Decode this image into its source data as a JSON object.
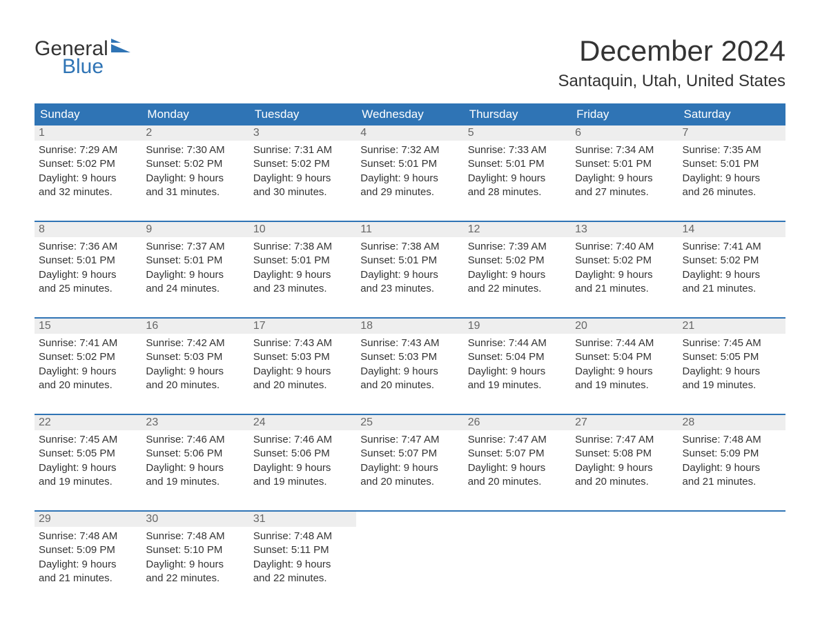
{
  "logo": {
    "text1": "General",
    "text2": "Blue",
    "shape_color": "#2f74b5"
  },
  "title": "December 2024",
  "location": "Santaquin, Utah, United States",
  "colors": {
    "header_bg": "#2f74b5",
    "header_text": "#ffffff",
    "daynum_bg": "#eeeeee",
    "daynum_text": "#666666",
    "body_text": "#333333",
    "week_border": "#2f74b5",
    "page_bg": "#ffffff"
  },
  "fonts": {
    "title_size": 42,
    "location_size": 24,
    "header_size": 17,
    "body_size": 15
  },
  "day_headers": [
    "Sunday",
    "Monday",
    "Tuesday",
    "Wednesday",
    "Thursday",
    "Friday",
    "Saturday"
  ],
  "weeks": [
    [
      {
        "num": "1",
        "sunrise": "Sunrise: 7:29 AM",
        "sunset": "Sunset: 5:02 PM",
        "d1": "Daylight: 9 hours",
        "d2": "and 32 minutes."
      },
      {
        "num": "2",
        "sunrise": "Sunrise: 7:30 AM",
        "sunset": "Sunset: 5:02 PM",
        "d1": "Daylight: 9 hours",
        "d2": "and 31 minutes."
      },
      {
        "num": "3",
        "sunrise": "Sunrise: 7:31 AM",
        "sunset": "Sunset: 5:02 PM",
        "d1": "Daylight: 9 hours",
        "d2": "and 30 minutes."
      },
      {
        "num": "4",
        "sunrise": "Sunrise: 7:32 AM",
        "sunset": "Sunset: 5:01 PM",
        "d1": "Daylight: 9 hours",
        "d2": "and 29 minutes."
      },
      {
        "num": "5",
        "sunrise": "Sunrise: 7:33 AM",
        "sunset": "Sunset: 5:01 PM",
        "d1": "Daylight: 9 hours",
        "d2": "and 28 minutes."
      },
      {
        "num": "6",
        "sunrise": "Sunrise: 7:34 AM",
        "sunset": "Sunset: 5:01 PM",
        "d1": "Daylight: 9 hours",
        "d2": "and 27 minutes."
      },
      {
        "num": "7",
        "sunrise": "Sunrise: 7:35 AM",
        "sunset": "Sunset: 5:01 PM",
        "d1": "Daylight: 9 hours",
        "d2": "and 26 minutes."
      }
    ],
    [
      {
        "num": "8",
        "sunrise": "Sunrise: 7:36 AM",
        "sunset": "Sunset: 5:01 PM",
        "d1": "Daylight: 9 hours",
        "d2": "and 25 minutes."
      },
      {
        "num": "9",
        "sunrise": "Sunrise: 7:37 AM",
        "sunset": "Sunset: 5:01 PM",
        "d1": "Daylight: 9 hours",
        "d2": "and 24 minutes."
      },
      {
        "num": "10",
        "sunrise": "Sunrise: 7:38 AM",
        "sunset": "Sunset: 5:01 PM",
        "d1": "Daylight: 9 hours",
        "d2": "and 23 minutes."
      },
      {
        "num": "11",
        "sunrise": "Sunrise: 7:38 AM",
        "sunset": "Sunset: 5:01 PM",
        "d1": "Daylight: 9 hours",
        "d2": "and 23 minutes."
      },
      {
        "num": "12",
        "sunrise": "Sunrise: 7:39 AM",
        "sunset": "Sunset: 5:02 PM",
        "d1": "Daylight: 9 hours",
        "d2": "and 22 minutes."
      },
      {
        "num": "13",
        "sunrise": "Sunrise: 7:40 AM",
        "sunset": "Sunset: 5:02 PM",
        "d1": "Daylight: 9 hours",
        "d2": "and 21 minutes."
      },
      {
        "num": "14",
        "sunrise": "Sunrise: 7:41 AM",
        "sunset": "Sunset: 5:02 PM",
        "d1": "Daylight: 9 hours",
        "d2": "and 21 minutes."
      }
    ],
    [
      {
        "num": "15",
        "sunrise": "Sunrise: 7:41 AM",
        "sunset": "Sunset: 5:02 PM",
        "d1": "Daylight: 9 hours",
        "d2": "and 20 minutes."
      },
      {
        "num": "16",
        "sunrise": "Sunrise: 7:42 AM",
        "sunset": "Sunset: 5:03 PM",
        "d1": "Daylight: 9 hours",
        "d2": "and 20 minutes."
      },
      {
        "num": "17",
        "sunrise": "Sunrise: 7:43 AM",
        "sunset": "Sunset: 5:03 PM",
        "d1": "Daylight: 9 hours",
        "d2": "and 20 minutes."
      },
      {
        "num": "18",
        "sunrise": "Sunrise: 7:43 AM",
        "sunset": "Sunset: 5:03 PM",
        "d1": "Daylight: 9 hours",
        "d2": "and 20 minutes."
      },
      {
        "num": "19",
        "sunrise": "Sunrise: 7:44 AM",
        "sunset": "Sunset: 5:04 PM",
        "d1": "Daylight: 9 hours",
        "d2": "and 19 minutes."
      },
      {
        "num": "20",
        "sunrise": "Sunrise: 7:44 AM",
        "sunset": "Sunset: 5:04 PM",
        "d1": "Daylight: 9 hours",
        "d2": "and 19 minutes."
      },
      {
        "num": "21",
        "sunrise": "Sunrise: 7:45 AM",
        "sunset": "Sunset: 5:05 PM",
        "d1": "Daylight: 9 hours",
        "d2": "and 19 minutes."
      }
    ],
    [
      {
        "num": "22",
        "sunrise": "Sunrise: 7:45 AM",
        "sunset": "Sunset: 5:05 PM",
        "d1": "Daylight: 9 hours",
        "d2": "and 19 minutes."
      },
      {
        "num": "23",
        "sunrise": "Sunrise: 7:46 AM",
        "sunset": "Sunset: 5:06 PM",
        "d1": "Daylight: 9 hours",
        "d2": "and 19 minutes."
      },
      {
        "num": "24",
        "sunrise": "Sunrise: 7:46 AM",
        "sunset": "Sunset: 5:06 PM",
        "d1": "Daylight: 9 hours",
        "d2": "and 19 minutes."
      },
      {
        "num": "25",
        "sunrise": "Sunrise: 7:47 AM",
        "sunset": "Sunset: 5:07 PM",
        "d1": "Daylight: 9 hours",
        "d2": "and 20 minutes."
      },
      {
        "num": "26",
        "sunrise": "Sunrise: 7:47 AM",
        "sunset": "Sunset: 5:07 PM",
        "d1": "Daylight: 9 hours",
        "d2": "and 20 minutes."
      },
      {
        "num": "27",
        "sunrise": "Sunrise: 7:47 AM",
        "sunset": "Sunset: 5:08 PM",
        "d1": "Daylight: 9 hours",
        "d2": "and 20 minutes."
      },
      {
        "num": "28",
        "sunrise": "Sunrise: 7:48 AM",
        "sunset": "Sunset: 5:09 PM",
        "d1": "Daylight: 9 hours",
        "d2": "and 21 minutes."
      }
    ],
    [
      {
        "num": "29",
        "sunrise": "Sunrise: 7:48 AM",
        "sunset": "Sunset: 5:09 PM",
        "d1": "Daylight: 9 hours",
        "d2": "and 21 minutes."
      },
      {
        "num": "30",
        "sunrise": "Sunrise: 7:48 AM",
        "sunset": "Sunset: 5:10 PM",
        "d1": "Daylight: 9 hours",
        "d2": "and 22 minutes."
      },
      {
        "num": "31",
        "sunrise": "Sunrise: 7:48 AM",
        "sunset": "Sunset: 5:11 PM",
        "d1": "Daylight: 9 hours",
        "d2": "and 22 minutes."
      },
      null,
      null,
      null,
      null
    ]
  ]
}
